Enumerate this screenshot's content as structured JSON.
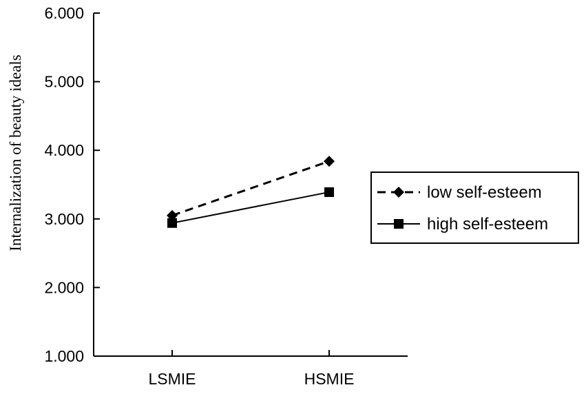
{
  "chart_data": {
    "type": "line",
    "title": "",
    "xlabel": "",
    "ylabel": "Internalization of beauty ideals",
    "categories": [
      "LSMIE",
      "HSMIE"
    ],
    "ylim": [
      1.0,
      6.0
    ],
    "yticks": [
      "1.000",
      "2.000",
      "3.000",
      "4.000",
      "5.000",
      "6.000"
    ],
    "grid": false,
    "legend_position": "right",
    "series": [
      {
        "name": "low self-esteem",
        "values": [
          3.05,
          3.84
        ],
        "line_style": "dashed",
        "marker": "diamond",
        "color": "#000000"
      },
      {
        "name": "high self-esteem",
        "values": [
          2.94,
          3.39
        ],
        "line_style": "solid",
        "marker": "square",
        "color": "#000000"
      }
    ]
  }
}
